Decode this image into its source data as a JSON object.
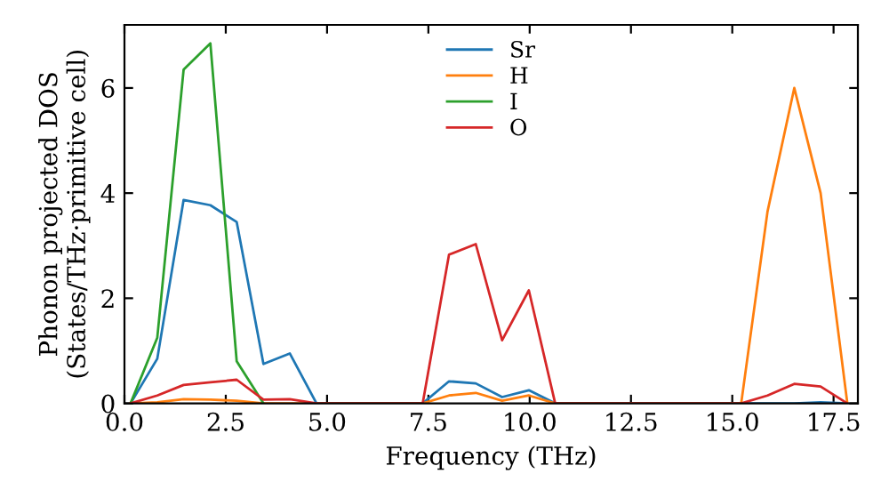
{
  "chart_data": {
    "type": "line",
    "xlabel": "Frequency (THz)",
    "ylabel": "Phonon projected DOS\n(States/THz·primitive cell)",
    "x": [
      0.15,
      0.81,
      1.46,
      2.12,
      2.77,
      3.43,
      4.08,
      4.74,
      5.39,
      6.05,
      6.7,
      7.36,
      8.01,
      8.67,
      9.32,
      9.98,
      10.63,
      11.29,
      11.94,
      12.6,
      13.25,
      13.91,
      14.56,
      15.22,
      15.87,
      16.53,
      17.18,
      17.84
    ],
    "series": [
      {
        "name": "Sr",
        "color": "#1f77b4",
        "values": [
          0,
          0.85,
          3.87,
          3.77,
          3.45,
          0.75,
          0.95,
          0,
          0,
          0,
          0,
          0,
          0.42,
          0.38,
          0.12,
          0.25,
          0,
          0,
          0,
          0,
          0,
          0,
          0,
          0,
          0,
          0,
          0.02,
          0
        ]
      },
      {
        "name": "H",
        "color": "#ff7f0e",
        "values": [
          0,
          0.02,
          0.08,
          0.07,
          0.05,
          0,
          0,
          0,
          0,
          0,
          0,
          0,
          0.15,
          0.2,
          0.05,
          0.15,
          0,
          0,
          0,
          0,
          0,
          0,
          0,
          0,
          3.65,
          6.0,
          4.0,
          0
        ]
      },
      {
        "name": "I",
        "color": "#2ca02c",
        "values": [
          0,
          1.25,
          6.35,
          6.85,
          0.8,
          0,
          null,
          null,
          null,
          null,
          null,
          null,
          null,
          null,
          null,
          null,
          null,
          null,
          null,
          null,
          null,
          null,
          null,
          null,
          null,
          null,
          null,
          null
        ]
      },
      {
        "name": "O",
        "color": "#d62728",
        "values": [
          0,
          0.15,
          0.35,
          0.4,
          0.45,
          0.07,
          0.08,
          0,
          0,
          0,
          0,
          0,
          2.83,
          3.03,
          1.2,
          2.15,
          0,
          0,
          0,
          0,
          0,
          0,
          0,
          0,
          0.15,
          0.37,
          0.32,
          0
        ]
      }
    ],
    "xlim": [
      0,
      18.1
    ],
    "ylim": [
      0,
      7.2
    ],
    "xticks": [
      {
        "value": 0,
        "label": "0.0"
      },
      {
        "value": 2.5,
        "label": "2.5"
      },
      {
        "value": 5,
        "label": "5.0"
      },
      {
        "value": 7.5,
        "label": "7.5"
      },
      {
        "value": 10,
        "label": "10.0"
      },
      {
        "value": 12.5,
        "label": "12.5"
      },
      {
        "value": 15,
        "label": "15.0"
      },
      {
        "value": 17.5,
        "label": "17.5"
      }
    ],
    "yticks": [
      0,
      2,
      4,
      6
    ],
    "legend": "top center",
    "grid": false
  }
}
